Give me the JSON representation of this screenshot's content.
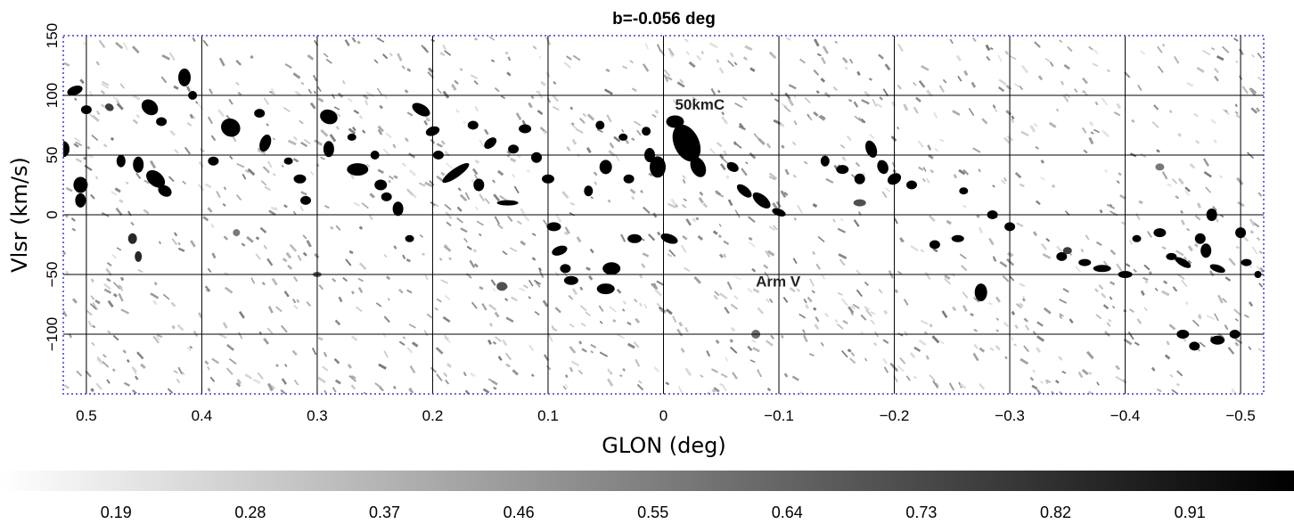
{
  "chart_data": {
    "type": "heatmap",
    "title": "b=-0.056 deg",
    "xlabel": "GLON (deg)",
    "ylabel": "Vlsr (km/s)",
    "xlim": [
      0.52,
      -0.52
    ],
    "ylim": [
      -150,
      150
    ],
    "x_ticks": [
      "0.5",
      "0.4",
      "0.3",
      "0.2",
      "0.1",
      "0",
      "−0.1",
      "−0.2",
      "−0.3",
      "−0.4",
      "−0.5"
    ],
    "x_tick_values": [
      0.5,
      0.4,
      0.3,
      0.2,
      0.1,
      0,
      -0.1,
      -0.2,
      -0.3,
      -0.4,
      -0.5
    ],
    "y_ticks": [
      "150",
      "100",
      "50",
      "0",
      "−50",
      "−100"
    ],
    "y_tick_values": [
      150,
      100,
      50,
      0,
      -50,
      -100
    ],
    "grid": true,
    "annotations": [
      {
        "text": "50kmC",
        "glon": -0.01,
        "vlsr": 88
      },
      {
        "text": "Arm V",
        "glon": -0.08,
        "vlsr": -60
      }
    ],
    "colorbar": {
      "ticks": [
        "0.19",
        "0.28",
        "0.37",
        "0.46",
        "0.55",
        "0.64",
        "0.73",
        "0.82",
        "0.91"
      ],
      "tick_values": [
        0.19,
        0.28,
        0.37,
        0.46,
        0.55,
        0.64,
        0.73,
        0.82,
        0.91
      ],
      "range": [
        0.1,
        1.0
      ],
      "colors": [
        "#ffffff",
        "#000000"
      ]
    },
    "features": [
      {
        "name": "50kmC",
        "glon": -0.02,
        "vlsr": 48,
        "intensity": 1.0
      },
      {
        "name": "Arm V",
        "glon": -0.08,
        "vlsr": -62,
        "intensity": 0.6
      }
    ]
  }
}
